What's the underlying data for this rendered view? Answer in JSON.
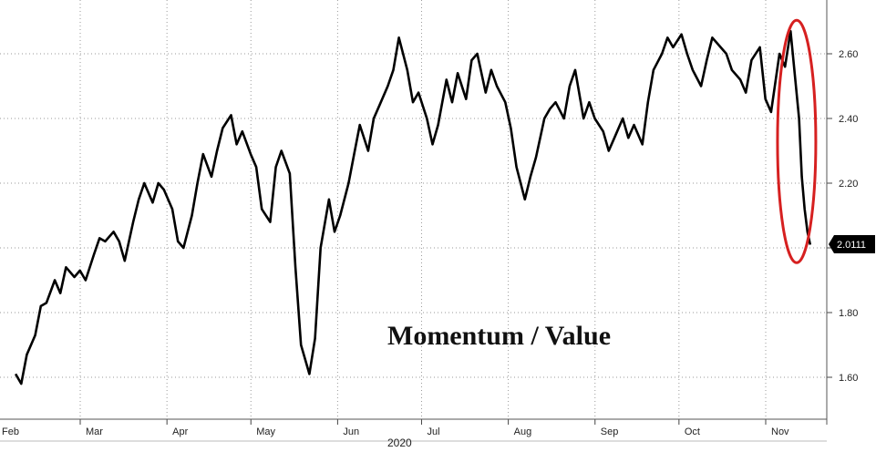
{
  "chart_data": {
    "type": "line",
    "title": "Momentum / Value",
    "xlabel": "2020",
    "ylabel": "",
    "x_tick_labels": [
      "Feb",
      "Mar",
      "Apr",
      "May",
      "Jun",
      "Jul",
      "Aug",
      "Sep",
      "Oct",
      "Nov"
    ],
    "y_ticks": [
      1.6,
      1.8,
      2.0,
      2.2,
      2.4,
      2.6
    ],
    "y_tick_labels": [
      "1.60",
      "1.80",
      "2.00",
      "2.20",
      "2.40",
      "2.60"
    ],
    "ylim": [
      1.5,
      2.75
    ],
    "grid": true,
    "axis_side": "right",
    "last_value_label": "2.0111",
    "last_value": 2.0111,
    "highlight": {
      "shape": "ellipse",
      "color": "#d62020",
      "around": "November drop"
    },
    "colors": {
      "line": "#000000",
      "grid": "#999999",
      "label_bg": "#000000"
    },
    "series": [
      {
        "x": [
          "2020-02-03",
          "2020-02-05",
          "2020-02-07",
          "2020-02-10",
          "2020-02-12",
          "2020-02-14",
          "2020-02-17",
          "2020-02-19",
          "2020-02-21",
          "2020-02-24",
          "2020-02-26",
          "2020-02-28",
          "2020-03-02",
          "2020-03-04",
          "2020-03-06",
          "2020-03-09",
          "2020-03-11",
          "2020-03-13",
          "2020-03-16",
          "2020-03-18",
          "2020-03-20",
          "2020-03-23",
          "2020-03-25",
          "2020-03-27",
          "2020-03-30",
          "2020-04-01",
          "2020-04-03",
          "2020-04-06",
          "2020-04-08",
          "2020-04-10",
          "2020-04-13",
          "2020-04-15",
          "2020-04-17",
          "2020-04-20",
          "2020-04-22",
          "2020-04-24",
          "2020-04-27",
          "2020-04-29",
          "2020-05-01",
          "2020-05-04",
          "2020-05-06",
          "2020-05-08",
          "2020-05-11",
          "2020-05-13",
          "2020-05-15",
          "2020-05-18",
          "2020-05-20",
          "2020-05-22",
          "2020-05-25",
          "2020-05-27",
          "2020-05-29",
          "2020-06-01",
          "2020-06-03",
          "2020-06-05",
          "2020-06-08",
          "2020-06-10",
          "2020-06-12",
          "2020-06-15",
          "2020-06-17",
          "2020-06-19",
          "2020-06-22",
          "2020-06-24",
          "2020-06-26",
          "2020-06-29",
          "2020-07-01",
          "2020-07-03",
          "2020-07-06",
          "2020-07-08",
          "2020-07-10",
          "2020-07-13",
          "2020-07-15",
          "2020-07-17",
          "2020-07-20",
          "2020-07-22",
          "2020-07-24",
          "2020-07-27",
          "2020-07-29",
          "2020-07-31",
          "2020-08-03",
          "2020-08-05",
          "2020-08-07",
          "2020-08-10",
          "2020-08-12",
          "2020-08-14",
          "2020-08-17",
          "2020-08-19",
          "2020-08-21",
          "2020-08-24",
          "2020-08-26",
          "2020-08-28",
          "2020-08-31",
          "2020-09-02",
          "2020-09-04",
          "2020-09-07",
          "2020-09-09",
          "2020-09-11",
          "2020-09-14",
          "2020-09-16",
          "2020-09-18",
          "2020-09-21",
          "2020-09-23",
          "2020-09-25",
          "2020-09-28",
          "2020-09-30",
          "2020-10-02",
          "2020-10-05",
          "2020-10-07",
          "2020-10-09",
          "2020-10-12",
          "2020-10-14",
          "2020-10-16",
          "2020-10-19",
          "2020-10-21",
          "2020-10-23",
          "2020-10-26",
          "2020-10-28",
          "2020-10-30",
          "2020-11-02",
          "2020-11-04",
          "2020-11-06",
          "2020-11-09",
          "2020-11-10",
          "2020-11-11",
          "2020-11-12",
          "2020-11-13"
        ],
        "values": [
          1.61,
          1.58,
          1.67,
          1.73,
          1.82,
          1.83,
          1.9,
          1.86,
          1.94,
          1.91,
          1.93,
          1.9,
          1.98,
          2.03,
          2.02,
          2.05,
          2.02,
          1.96,
          2.08,
          2.15,
          2.2,
          2.14,
          2.2,
          2.18,
          2.12,
          2.02,
          2.0,
          2.1,
          2.2,
          2.29,
          2.22,
          2.3,
          2.37,
          2.41,
          2.32,
          2.36,
          2.29,
          2.25,
          2.12,
          2.08,
          2.25,
          2.3,
          2.23,
          1.94,
          1.7,
          1.61,
          1.72,
          2.0,
          2.15,
          2.05,
          2.1,
          2.2,
          2.29,
          2.38,
          2.3,
          2.4,
          2.44,
          2.5,
          2.55,
          2.65,
          2.55,
          2.45,
          2.48,
          2.4,
          2.32,
          2.38,
          2.52,
          2.45,
          2.54,
          2.46,
          2.58,
          2.6,
          2.48,
          2.55,
          2.5,
          2.45,
          2.37,
          2.25,
          2.15,
          2.22,
          2.28,
          2.4,
          2.43,
          2.45,
          2.4,
          2.5,
          2.55,
          2.4,
          2.45,
          2.4,
          2.36,
          2.3,
          2.34,
          2.4,
          2.34,
          2.38,
          2.32,
          2.45,
          2.55,
          2.6,
          2.65,
          2.62,
          2.66,
          2.6,
          2.55,
          2.5,
          2.58,
          2.65,
          2.62,
          2.6,
          2.55,
          2.52,
          2.48,
          2.58,
          2.62,
          2.46,
          2.42,
          2.6,
          2.56,
          2.67,
          2.4,
          2.22,
          2.12,
          2.05,
          2.01
        ]
      }
    ]
  }
}
